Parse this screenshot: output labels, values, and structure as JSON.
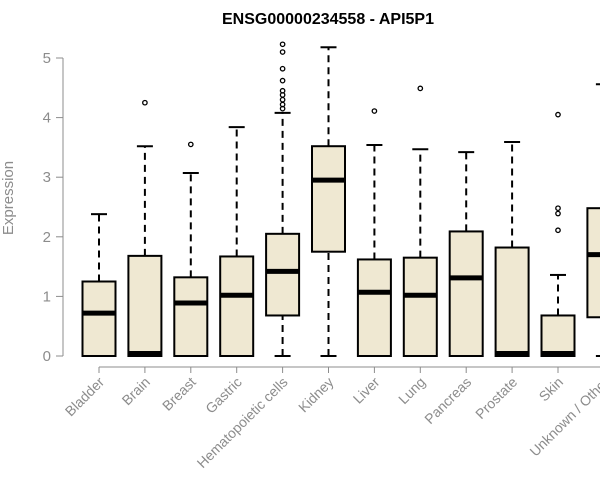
{
  "chart_data": {
    "type": "boxplot",
    "title": "ENSG00000234558 - API5P1",
    "xlabel": "",
    "ylabel": "Expression",
    "ylim": [
      0,
      5.2
    ],
    "yticks": [
      0,
      1,
      2,
      3,
      4,
      5
    ],
    "grid": false,
    "box_fill": "#efe8d2",
    "box_stroke": "#000000",
    "categories": [
      "Bladder",
      "Brain",
      "Breast",
      "Gastric",
      "Hematopoietic cells",
      "Kidney",
      "Liver",
      "Lung",
      "Pancreas",
      "Prostate",
      "Skin",
      "Unknown / Other"
    ],
    "series": [
      {
        "category": "Bladder",
        "whisker_low": 0,
        "q1": 0,
        "median": 0.72,
        "q3": 1.25,
        "whisker_high": 2.38,
        "outliers": []
      },
      {
        "category": "Brain",
        "whisker_low": 0,
        "q1": 0,
        "median": 0.01,
        "q3": 1.68,
        "whisker_high": 3.52,
        "outliers": [
          4.25
        ]
      },
      {
        "category": "Breast",
        "whisker_low": 0,
        "q1": 0,
        "median": 0.89,
        "q3": 1.32,
        "whisker_high": 3.07,
        "outliers": [
          3.55
        ]
      },
      {
        "category": "Gastric",
        "whisker_low": 0,
        "q1": 0,
        "median": 1.02,
        "q3": 1.67,
        "whisker_high": 3.84,
        "outliers": []
      },
      {
        "category": "Hematopoietic cells",
        "whisker_low": 0,
        "q1": 0.68,
        "median": 1.42,
        "q3": 2.05,
        "whisker_high": 4.08,
        "outliers": [
          4.15,
          4.22,
          4.3,
          4.38,
          4.45,
          4.62,
          4.82,
          5.1,
          5.23
        ]
      },
      {
        "category": "Kidney",
        "whisker_low": 0,
        "q1": 1.75,
        "median": 2.95,
        "q3": 3.52,
        "whisker_high": 5.18,
        "outliers": []
      },
      {
        "category": "Liver",
        "whisker_low": 0,
        "q1": 0,
        "median": 1.07,
        "q3": 1.62,
        "whisker_high": 3.54,
        "outliers": [
          4.11
        ]
      },
      {
        "category": "Lung",
        "whisker_low": 0,
        "q1": 0,
        "median": 1.02,
        "q3": 1.65,
        "whisker_high": 3.47,
        "outliers": [
          4.49
        ]
      },
      {
        "category": "Pancreas",
        "whisker_low": 0,
        "q1": 0,
        "median": 1.31,
        "q3": 2.09,
        "whisker_high": 3.42,
        "outliers": []
      },
      {
        "category": "Prostate",
        "whisker_low": 0,
        "q1": 0,
        "median": 0.01,
        "q3": 1.82,
        "whisker_high": 3.59,
        "outliers": []
      },
      {
        "category": "Skin",
        "whisker_low": 0,
        "q1": 0,
        "median": 0.01,
        "q3": 0.68,
        "whisker_high": 1.36,
        "outliers": [
          2.11,
          2.39,
          2.48,
          4.05
        ]
      },
      {
        "category": "Unknown / Other",
        "whisker_low": 0,
        "q1": 0.65,
        "median": 1.7,
        "q3": 2.48,
        "whisker_high": 4.56,
        "outliers": []
      }
    ]
  }
}
